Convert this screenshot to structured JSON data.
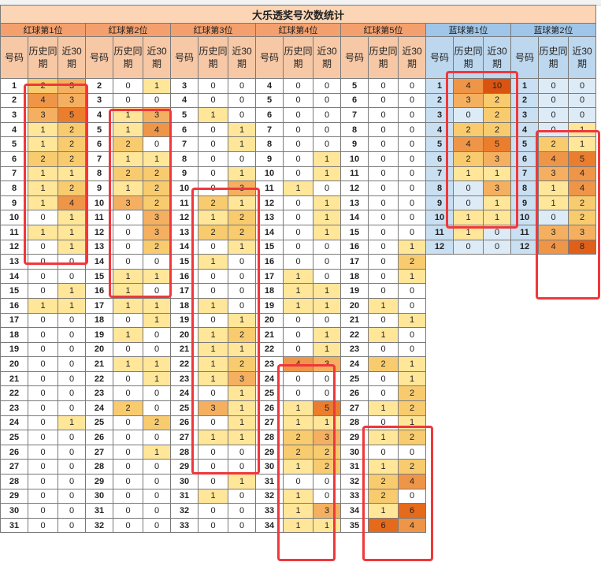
{
  "title": "大乐透奖号次数统计",
  "sub_headers": {
    "code": "号码",
    "history": "历史同期",
    "recent": "近30期"
  },
  "colors": {
    "red_group": "#f3a06e",
    "blue_group": "#9fc5e8",
    "marker": "#f0373b"
  },
  "groups": [
    {
      "label": "红球第1位",
      "kind": "red",
      "rows": [
        [
          "1",
          "2",
          "3"
        ],
        [
          "2",
          "4",
          "3"
        ],
        [
          "3",
          "3",
          "5"
        ],
        [
          "4",
          "1",
          "2"
        ],
        [
          "5",
          "1",
          "2"
        ],
        [
          "6",
          "2",
          "2"
        ],
        [
          "7",
          "1",
          "1"
        ],
        [
          "8",
          "1",
          "2"
        ],
        [
          "9",
          "1",
          "4"
        ],
        [
          "10",
          "0",
          "1"
        ],
        [
          "11",
          "1",
          "1"
        ],
        [
          "12",
          "0",
          "1"
        ],
        [
          "13",
          "0",
          "0"
        ],
        [
          "14",
          "0",
          "0"
        ],
        [
          "15",
          "0",
          "1"
        ],
        [
          "16",
          "1",
          "1"
        ],
        [
          "17",
          "0",
          "0"
        ],
        [
          "18",
          "0",
          "0"
        ],
        [
          "19",
          "0",
          "0"
        ],
        [
          "20",
          "0",
          "0"
        ],
        [
          "21",
          "0",
          "0"
        ],
        [
          "22",
          "0",
          "0"
        ],
        [
          "23",
          "0",
          "0"
        ],
        [
          "24",
          "0",
          "1"
        ],
        [
          "25",
          "0",
          "0"
        ],
        [
          "26",
          "0",
          "0"
        ],
        [
          "27",
          "0",
          "0"
        ],
        [
          "28",
          "0",
          "0"
        ],
        [
          "29",
          "0",
          "0"
        ],
        [
          "30",
          "0",
          "0"
        ],
        [
          "31",
          "0",
          "0"
        ]
      ]
    },
    {
      "label": "红球第2位",
      "kind": "red",
      "rows": [
        [
          "2",
          "0",
          "1"
        ],
        [
          "3",
          "0",
          "0"
        ],
        [
          "4",
          "1",
          "3"
        ],
        [
          "5",
          "1",
          "4"
        ],
        [
          "6",
          "2",
          "0"
        ],
        [
          "7",
          "1",
          "1"
        ],
        [
          "8",
          "2",
          "2"
        ],
        [
          "9",
          "1",
          "2"
        ],
        [
          "10",
          "3",
          "2"
        ],
        [
          "11",
          "0",
          "3"
        ],
        [
          "12",
          "0",
          "3"
        ],
        [
          "13",
          "0",
          "2"
        ],
        [
          "14",
          "0",
          "0"
        ],
        [
          "15",
          "1",
          "1"
        ],
        [
          "16",
          "1",
          "0"
        ],
        [
          "17",
          "1",
          "1"
        ],
        [
          "18",
          "0",
          "1"
        ],
        [
          "19",
          "1",
          "0"
        ],
        [
          "20",
          "0",
          "0"
        ],
        [
          "21",
          "1",
          "1"
        ],
        [
          "22",
          "0",
          "1"
        ],
        [
          "23",
          "0",
          "0"
        ],
        [
          "24",
          "2",
          "0"
        ],
        [
          "25",
          "0",
          "2"
        ],
        [
          "26",
          "0",
          "0"
        ],
        [
          "27",
          "0",
          "1"
        ],
        [
          "28",
          "0",
          "0"
        ],
        [
          "29",
          "0",
          "0"
        ],
        [
          "30",
          "0",
          "0"
        ],
        [
          "31",
          "0",
          "0"
        ],
        [
          "32",
          "0",
          "0"
        ]
      ]
    },
    {
      "label": "红球第3位",
      "kind": "red",
      "rows": [
        [
          "3",
          "0",
          "0"
        ],
        [
          "4",
          "0",
          "0"
        ],
        [
          "5",
          "1",
          "0"
        ],
        [
          "6",
          "0",
          "1"
        ],
        [
          "7",
          "0",
          "1"
        ],
        [
          "8",
          "0",
          "0"
        ],
        [
          "9",
          "0",
          "1"
        ],
        [
          "10",
          "0",
          "3"
        ],
        [
          "11",
          "2",
          "1"
        ],
        [
          "12",
          "1",
          "2"
        ],
        [
          "13",
          "2",
          "2"
        ],
        [
          "14",
          "0",
          "1"
        ],
        [
          "15",
          "1",
          "0"
        ],
        [
          "16",
          "0",
          "0"
        ],
        [
          "17",
          "0",
          "0"
        ],
        [
          "18",
          "1",
          "0"
        ],
        [
          "19",
          "0",
          "1"
        ],
        [
          "20",
          "1",
          "2"
        ],
        [
          "21",
          "1",
          "1"
        ],
        [
          "22",
          "1",
          "2"
        ],
        [
          "23",
          "1",
          "3"
        ],
        [
          "24",
          "0",
          "1"
        ],
        [
          "25",
          "3",
          "1"
        ],
        [
          "26",
          "0",
          "1"
        ],
        [
          "27",
          "1",
          "1"
        ],
        [
          "28",
          "0",
          "0"
        ],
        [
          "29",
          "0",
          "0"
        ],
        [
          "30",
          "0",
          "1"
        ],
        [
          "31",
          "1",
          "0"
        ],
        [
          "32",
          "0",
          "0"
        ],
        [
          "33",
          "0",
          "0"
        ]
      ]
    },
    {
      "label": "红球第4位",
      "kind": "red",
      "rows": [
        [
          "4",
          "0",
          "0"
        ],
        [
          "5",
          "0",
          "0"
        ],
        [
          "6",
          "0",
          "0"
        ],
        [
          "7",
          "0",
          "0"
        ],
        [
          "8",
          "0",
          "0"
        ],
        [
          "9",
          "0",
          "1"
        ],
        [
          "10",
          "0",
          "1"
        ],
        [
          "11",
          "1",
          "0"
        ],
        [
          "12",
          "0",
          "1"
        ],
        [
          "13",
          "0",
          "1"
        ],
        [
          "14",
          "0",
          "1"
        ],
        [
          "15",
          "0",
          "0"
        ],
        [
          "16",
          "0",
          "0"
        ],
        [
          "17",
          "1",
          "0"
        ],
        [
          "18",
          "1",
          "1"
        ],
        [
          "19",
          "1",
          "1"
        ],
        [
          "20",
          "0",
          "0"
        ],
        [
          "21",
          "0",
          "1"
        ],
        [
          "22",
          "0",
          "1"
        ],
        [
          "23",
          "4",
          "3"
        ],
        [
          "24",
          "0",
          "0"
        ],
        [
          "25",
          "0",
          "0"
        ],
        [
          "26",
          "1",
          "5"
        ],
        [
          "27",
          "1",
          "1"
        ],
        [
          "28",
          "2",
          "3"
        ],
        [
          "29",
          "2",
          "2"
        ],
        [
          "30",
          "1",
          "2"
        ],
        [
          "31",
          "0",
          "0"
        ],
        [
          "32",
          "1",
          "0"
        ],
        [
          "33",
          "1",
          "3"
        ],
        [
          "34",
          "1",
          "1"
        ]
      ]
    },
    {
      "label": "红球第5位",
      "kind": "red",
      "rows": [
        [
          "5",
          "0",
          "0"
        ],
        [
          "6",
          "0",
          "0"
        ],
        [
          "7",
          "0",
          "0"
        ],
        [
          "8",
          "0",
          "0"
        ],
        [
          "9",
          "0",
          "0"
        ],
        [
          "10",
          "0",
          "0"
        ],
        [
          "11",
          "0",
          "0"
        ],
        [
          "12",
          "0",
          "0"
        ],
        [
          "13",
          "0",
          "0"
        ],
        [
          "14",
          "0",
          "0"
        ],
        [
          "15",
          "0",
          "0"
        ],
        [
          "16",
          "0",
          "1"
        ],
        [
          "17",
          "0",
          "2"
        ],
        [
          "18",
          "0",
          "1"
        ],
        [
          "19",
          "0",
          "0"
        ],
        [
          "20",
          "1",
          "0"
        ],
        [
          "21",
          "0",
          "1"
        ],
        [
          "22",
          "1",
          "0"
        ],
        [
          "23",
          "0",
          "0"
        ],
        [
          "24",
          "2",
          "1"
        ],
        [
          "25",
          "0",
          "1"
        ],
        [
          "26",
          "0",
          "2"
        ],
        [
          "27",
          "1",
          "2"
        ],
        [
          "28",
          "0",
          "1"
        ],
        [
          "29",
          "1",
          "2"
        ],
        [
          "30",
          "0",
          "0"
        ],
        [
          "31",
          "1",
          "2"
        ],
        [
          "32",
          "2",
          "4"
        ],
        [
          "33",
          "2",
          "0"
        ],
        [
          "34",
          "1",
          "6"
        ],
        [
          "35",
          "6",
          "4"
        ]
      ]
    },
    {
      "label": "蓝球第1位",
      "kind": "blue",
      "rows": [
        [
          "1",
          "4",
          "10"
        ],
        [
          "2",
          "3",
          "2"
        ],
        [
          "3",
          "0",
          "2"
        ],
        [
          "4",
          "2",
          "2"
        ],
        [
          "5",
          "4",
          "5"
        ],
        [
          "6",
          "2",
          "3"
        ],
        [
          "7",
          "1",
          "1"
        ],
        [
          "8",
          "0",
          "3"
        ],
        [
          "9",
          "0",
          "1"
        ],
        [
          "10",
          "1",
          "1"
        ],
        [
          "11",
          "1",
          "0"
        ],
        [
          "12",
          "0",
          "0"
        ]
      ]
    },
    {
      "label": "蓝球第2位",
      "kind": "blue",
      "rows": [
        [
          "1",
          "0",
          "0"
        ],
        [
          "2",
          "0",
          "0"
        ],
        [
          "3",
          "0",
          "0"
        ],
        [
          "4",
          "0",
          "1"
        ],
        [
          "5",
          "2",
          "1"
        ],
        [
          "6",
          "4",
          "5"
        ],
        [
          "7",
          "3",
          "4"
        ],
        [
          "8",
          "1",
          "4"
        ],
        [
          "9",
          "1",
          "2"
        ],
        [
          "10",
          "0",
          "2"
        ],
        [
          "11",
          "3",
          "3"
        ],
        [
          "12",
          "4",
          "8"
        ]
      ]
    }
  ]
}
